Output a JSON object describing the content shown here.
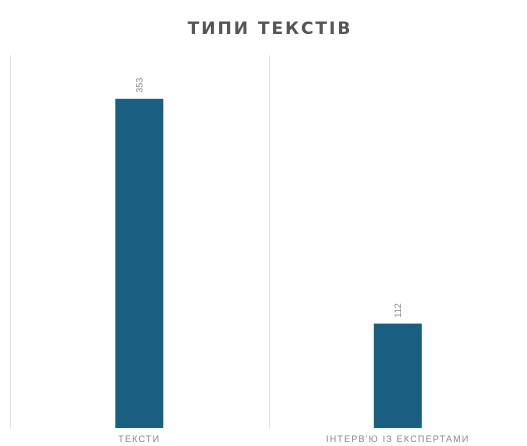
{
  "chart_data": {
    "type": "bar",
    "title": "ТИПИ ТЕКСТІВ",
    "categories": [
      "ТЕКСТИ",
      "ІНТЕРВ'Ю ІЗ ЕКСПЕРТАМИ"
    ],
    "values": [
      353,
      112
    ],
    "data_labels": [
      "353",
      "112"
    ],
    "xlabel": "",
    "ylabel": "",
    "ylim": [
      0,
      400
    ],
    "grid": "vertical-separators",
    "legend": "none",
    "colors": {
      "bar": "#1a5e80",
      "title": "#555555",
      "label": "#888888",
      "grid": "#e3e3e3"
    }
  }
}
